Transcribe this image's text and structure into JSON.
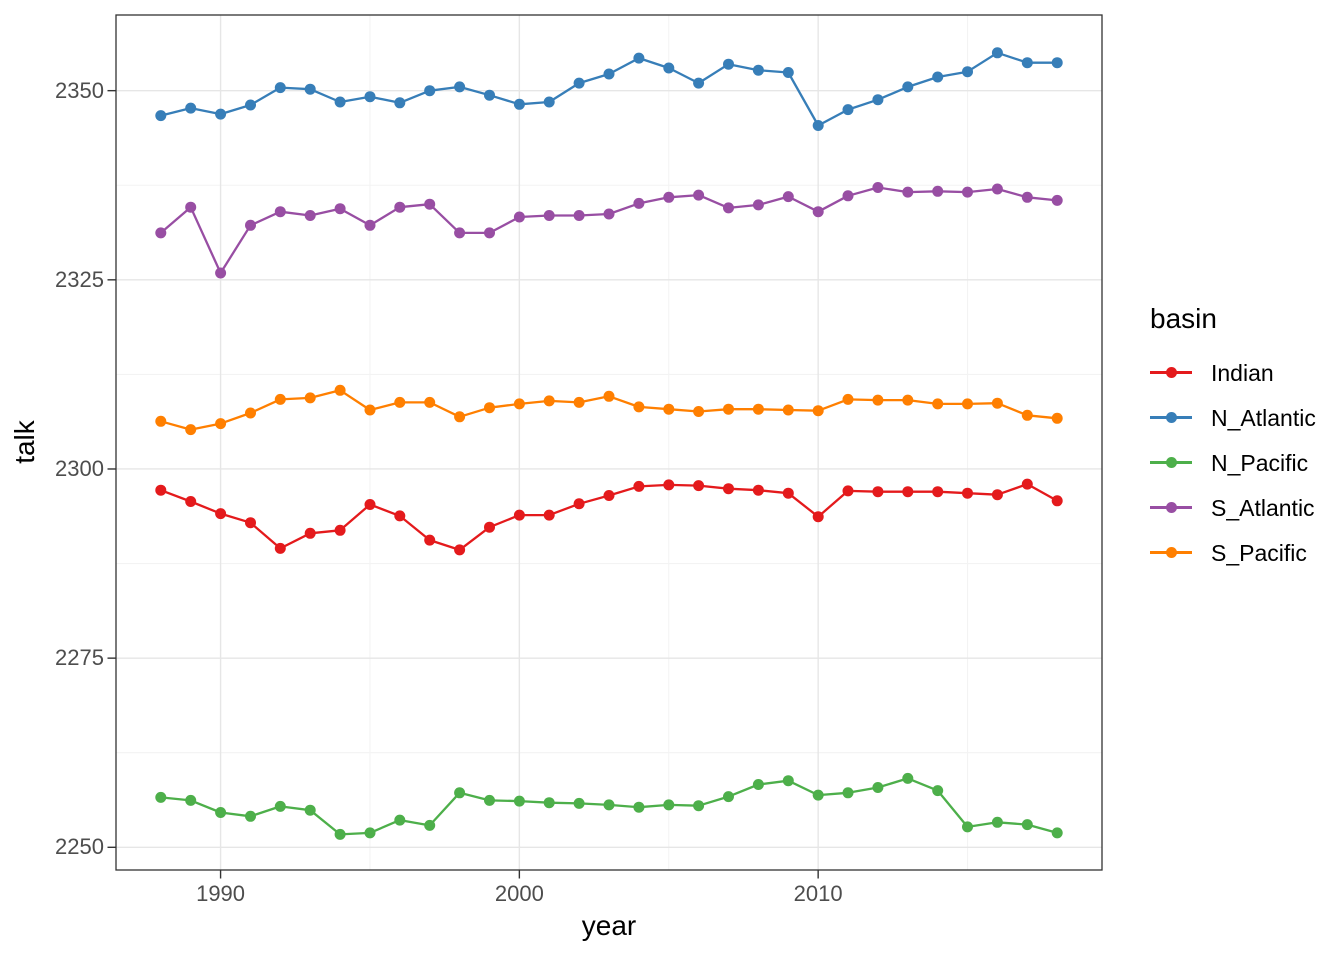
{
  "chart_data": {
    "type": "line",
    "title": "",
    "xlabel": "year",
    "ylabel": "talk",
    "legend_title": "basin",
    "legend_position": "right",
    "grid": true,
    "xlim": [
      1986.5,
      2019.5
    ],
    "ylim": [
      2247,
      2360
    ],
    "x_ticks": [
      1990,
      2000,
      2010
    ],
    "x_minor_ticks": [
      1995,
      2005,
      2015
    ],
    "y_ticks": [
      2250,
      2275,
      2300,
      2325,
      2350
    ],
    "y_minor_ticks": [
      2262.5,
      2287.5,
      2312.5,
      2337.5
    ],
    "x": [
      1988,
      1989,
      1990,
      1991,
      1992,
      1993,
      1994,
      1995,
      1996,
      1997,
      1998,
      1999,
      2000,
      2001,
      2002,
      2003,
      2004,
      2005,
      2006,
      2007,
      2008,
      2009,
      2010,
      2011,
      2012,
      2013,
      2014,
      2015,
      2016,
      2017,
      2018
    ],
    "series": [
      {
        "name": "Indian",
        "color": "#E41A1C",
        "values": [
          2297.2,
          2295.7,
          2294.1,
          2292.9,
          2289.5,
          2291.5,
          2291.9,
          2295.3,
          2293.8,
          2290.6,
          2289.3,
          2292.3,
          2293.9,
          2293.9,
          2295.4,
          2296.5,
          2297.7,
          2297.9,
          2297.8,
          2297.4,
          2297.2,
          2296.8,
          2293.7,
          2297.1,
          2297.0,
          2297.0,
          2297.0,
          2296.8,
          2296.6,
          2298.0,
          2295.8
        ]
      },
      {
        "name": "N_Atlantic",
        "color": "#377EB8",
        "values": [
          2346.7,
          2347.7,
          2346.9,
          2348.1,
          2350.4,
          2350.2,
          2348.5,
          2349.2,
          2348.4,
          2350.0,
          2350.5,
          2349.4,
          2348.2,
          2348.5,
          2351.0,
          2352.2,
          2354.3,
          2353.0,
          2351.0,
          2353.5,
          2352.7,
          2352.4,
          2345.4,
          2347.5,
          2348.8,
          2350.5,
          2351.8,
          2352.5,
          2355.0,
          2353.7,
          2353.7
        ]
      },
      {
        "name": "N_Pacific",
        "color": "#4DAF4A",
        "values": [
          2256.6,
          2256.2,
          2254.6,
          2254.1,
          2255.4,
          2254.9,
          2251.7,
          2251.9,
          2253.6,
          2252.9,
          2257.2,
          2256.2,
          2256.1,
          2255.9,
          2255.8,
          2255.6,
          2255.3,
          2255.6,
          2255.5,
          2256.7,
          2258.3,
          2258.8,
          2256.9,
          2257.2,
          2257.9,
          2259.1,
          2257.5,
          2252.7,
          2253.3,
          2253.0,
          2251.9
        ]
      },
      {
        "name": "S_Atlantic",
        "color": "#984EA3",
        "values": [
          2331.2,
          2334.6,
          2325.9,
          2332.2,
          2334.0,
          2333.5,
          2334.4,
          2332.2,
          2334.6,
          2335.0,
          2331.2,
          2331.2,
          2333.3,
          2333.5,
          2333.5,
          2333.7,
          2335.1,
          2335.9,
          2336.2,
          2334.5,
          2334.9,
          2336.0,
          2334.0,
          2336.1,
          2337.2,
          2336.6,
          2336.7,
          2336.6,
          2337.0,
          2335.9,
          2335.5
        ]
      },
      {
        "name": "S_Pacific",
        "color": "#FF7F00",
        "values": [
          2306.3,
          2305.2,
          2306.0,
          2307.4,
          2309.2,
          2309.4,
          2310.4,
          2307.8,
          2308.8,
          2308.8,
          2306.9,
          2308.1,
          2308.6,
          2309.0,
          2308.8,
          2309.6,
          2308.2,
          2307.9,
          2307.6,
          2307.9,
          2307.9,
          2307.8,
          2307.7,
          2309.2,
          2309.1,
          2309.1,
          2308.6,
          2308.6,
          2308.7,
          2307.1,
          2306.7
        ]
      }
    ]
  },
  "style": {
    "panel_border_color": "#333333",
    "major_grid_color": "#e6e6e6",
    "minor_grid_color": "#f3f3f3",
    "tick_mark_color": "#333333",
    "tick_label_color": "#4d4d4d"
  }
}
